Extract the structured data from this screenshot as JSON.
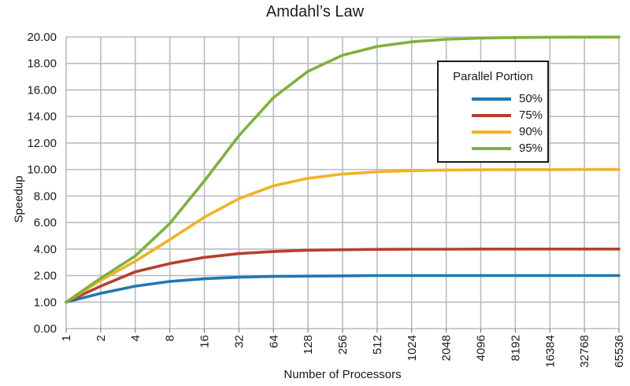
{
  "chart_data": {
    "type": "line",
    "title": "Amdahl’s Law",
    "xlabel": "Number of Processors",
    "ylabel": "Speedup",
    "x_scale": "log2",
    "categories": [
      "1",
      "2",
      "4",
      "8",
      "16",
      "32",
      "64",
      "128",
      "256",
      "512",
      "1024",
      "2048",
      "4096",
      "8192",
      "16384",
      "32768",
      "65536"
    ],
    "ylim": [
      0,
      20
    ],
    "yticks": [
      "0.00",
      "1.00",
      "2.00",
      "4.00",
      "6.00",
      "8.00",
      "10.00",
      "12.00",
      "14.00",
      "16.00",
      "18.00",
      "20.00"
    ],
    "grid": true,
    "legend": {
      "title": "Parallel Portion",
      "placement": "top-right"
    },
    "series": [
      {
        "name": "50%",
        "color": "#1f77b4",
        "values": [
          1.0,
          1.33,
          1.6,
          1.78,
          1.88,
          1.94,
          1.97,
          1.98,
          1.99,
          2.0,
          2.0,
          2.0,
          2.0,
          2.0,
          2.0,
          2.0,
          2.0
        ]
      },
      {
        "name": "75%",
        "color": "#b5402e",
        "values": [
          1.0,
          1.6,
          2.29,
          2.91,
          3.37,
          3.66,
          3.82,
          3.91,
          3.95,
          3.98,
          3.99,
          3.99,
          4.0,
          4.0,
          4.0,
          4.0,
          4.0
        ]
      },
      {
        "name": "90%",
        "color": "#f0b323",
        "values": [
          1.0,
          1.82,
          3.08,
          4.71,
          6.4,
          7.8,
          8.77,
          9.34,
          9.66,
          9.83,
          9.91,
          9.96,
          9.98,
          9.99,
          9.99,
          10.0,
          10.0
        ]
      },
      {
        "name": "95%",
        "color": "#7fb13b",
        "values": [
          1.0,
          1.9,
          3.48,
          5.93,
          9.14,
          12.55,
          15.42,
          17.41,
          18.62,
          19.28,
          19.63,
          19.82,
          19.91,
          19.95,
          19.98,
          19.99,
          19.99
        ]
      }
    ]
  }
}
